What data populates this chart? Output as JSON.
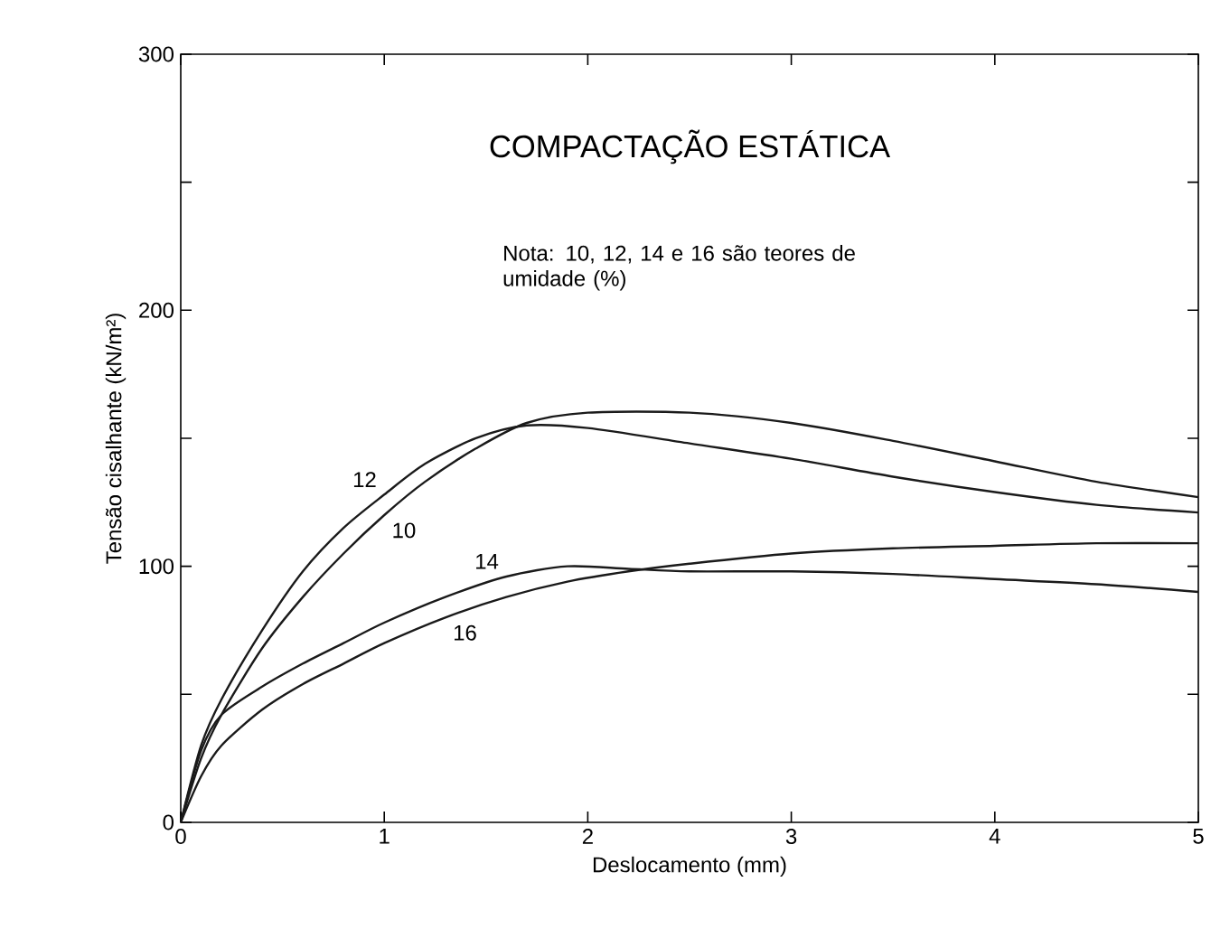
{
  "chart_data": {
    "type": "line",
    "title": "COMPACTAÇÃO ESTÁTICA",
    "annotations": [
      "Nota: 10, 12, 14 e 16 são teores de umidade (%)"
    ],
    "xlabel": "Deslocamento (mm)",
    "ylabel": "Tensão cisalhante (kN/m²)",
    "xlim": [
      0,
      5
    ],
    "ylim": [
      0,
      300
    ],
    "xticks": [
      0,
      1,
      2,
      3,
      4,
      5
    ],
    "yticks": [
      0,
      {
        "value": 50,
        "label": null
      },
      100,
      {
        "value": 150,
        "label": null
      },
      200,
      {
        "value": 250,
        "label": null
      },
      300
    ],
    "grid": false,
    "legend": false,
    "series": [
      {
        "name": "12",
        "color": "#1a1a1a",
        "x": [
          0,
          0.1,
          0.2,
          0.4,
          0.6,
          0.8,
          1.0,
          1.2,
          1.45,
          1.7,
          2.0,
          2.5,
          3,
          3.5,
          4,
          4.5,
          5
        ],
        "values": [
          0,
          30,
          48,
          75,
          98,
          115,
          128,
          140,
          150,
          155,
          154,
          148,
          142,
          135,
          129,
          124,
          121
        ]
      },
      {
        "name": "10",
        "color": "#1a1a1a",
        "x": [
          0,
          0.1,
          0.2,
          0.4,
          0.6,
          0.8,
          1.0,
          1.2,
          1.45,
          1.7,
          2.0,
          2.5,
          3,
          3.5,
          4,
          4.5,
          5
        ],
        "values": [
          0,
          25,
          42,
          68,
          88,
          105,
          120,
          133,
          146,
          156,
          160,
          160,
          156,
          149,
          141,
          133,
          127
        ]
      },
      {
        "name": "14",
        "color": "#1a1a1a",
        "x": [
          0,
          0.1,
          0.2,
          0.4,
          0.6,
          0.8,
          1.0,
          1.3,
          1.6,
          1.9,
          2.2,
          2.5,
          3,
          3.5,
          4,
          4.5,
          5
        ],
        "values": [
          0,
          28,
          42,
          53,
          62,
          70,
          78,
          88,
          96,
          100,
          99,
          98,
          98,
          97,
          95,
          93,
          90
        ]
      },
      {
        "name": "16",
        "color": "#1a1a1a",
        "x": [
          0,
          0.1,
          0.2,
          0.4,
          0.6,
          0.8,
          1.0,
          1.3,
          1.6,
          1.9,
          2.2,
          2.5,
          3,
          3.5,
          4,
          4.5,
          5
        ],
        "values": [
          0,
          18,
          30,
          44,
          54,
          62,
          70,
          80,
          88,
          94,
          98,
          101,
          105,
          107,
          108,
          109,
          109
        ]
      }
    ]
  }
}
